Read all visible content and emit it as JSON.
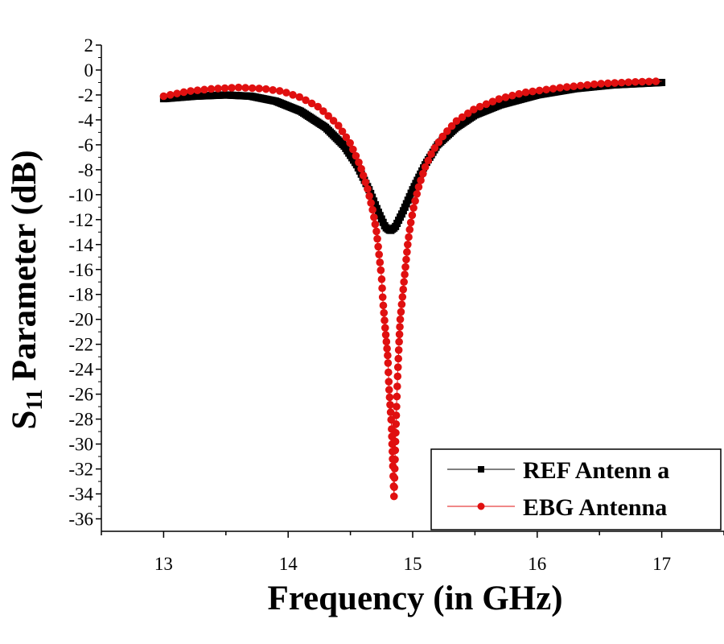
{
  "chart_data": {
    "type": "scatter",
    "title": "",
    "xlabel": "Frequency (in GHz)",
    "ylabel": {
      "base": "S",
      "subscript": "11",
      "rest": "Parameter (dB)"
    },
    "xlim": [
      12.5,
      17.5
    ],
    "ylim": [
      -37,
      2
    ],
    "x_ticks": [
      13,
      14,
      15,
      16,
      17
    ],
    "y_ticks": [
      2,
      0,
      -2,
      -4,
      -6,
      -8,
      -10,
      -12,
      -14,
      -16,
      -18,
      -20,
      -22,
      -24,
      -26,
      -28,
      -30,
      -32,
      -34,
      -36
    ],
    "x_range": [
      13,
      17
    ],
    "legend_position": "bottom-right",
    "colors": {
      "ref": "#000000",
      "ebg": "#e01010"
    },
    "series": [
      {
        "name": "REF Antenn a",
        "marker": "square",
        "points": [
          [
            13.0,
            -2.3
          ],
          [
            13.25,
            -2.1
          ],
          [
            13.5,
            -2.0
          ],
          [
            13.7,
            -2.1
          ],
          [
            13.9,
            -2.5
          ],
          [
            14.1,
            -3.3
          ],
          [
            14.3,
            -4.6
          ],
          [
            14.45,
            -6.1
          ],
          [
            14.55,
            -7.6
          ],
          [
            14.65,
            -9.6
          ],
          [
            14.72,
            -11.3
          ],
          [
            14.78,
            -12.6
          ],
          [
            14.82,
            -12.9
          ],
          [
            14.86,
            -12.6
          ],
          [
            14.92,
            -11.4
          ],
          [
            15.0,
            -9.6
          ],
          [
            15.1,
            -7.6
          ],
          [
            15.2,
            -6.0
          ],
          [
            15.35,
            -4.6
          ],
          [
            15.5,
            -3.6
          ],
          [
            15.7,
            -2.8
          ],
          [
            16.0,
            -2.0
          ],
          [
            16.3,
            -1.5
          ],
          [
            16.6,
            -1.2
          ],
          [
            17.0,
            -1.0
          ]
        ]
      },
      {
        "name": "EBG Antenna",
        "marker": "circle",
        "points": [
          [
            13.0,
            -2.1
          ],
          [
            13.2,
            -1.7
          ],
          [
            13.4,
            -1.5
          ],
          [
            13.6,
            -1.4
          ],
          [
            13.8,
            -1.5
          ],
          [
            13.95,
            -1.7
          ],
          [
            14.1,
            -2.2
          ],
          [
            14.25,
            -3.0
          ],
          [
            14.4,
            -4.4
          ],
          [
            14.5,
            -5.9
          ],
          [
            14.58,
            -7.7
          ],
          [
            14.64,
            -9.6
          ],
          [
            14.68,
            -11.3
          ],
          [
            14.71,
            -13.0
          ],
          [
            14.73,
            -14.8
          ],
          [
            14.75,
            -16.6
          ],
          [
            14.76,
            -18.4
          ],
          [
            14.78,
            -20.8
          ],
          [
            14.8,
            -23.0
          ],
          [
            14.81,
            -25.5
          ],
          [
            14.83,
            -28.5
          ],
          [
            14.84,
            -31.5
          ],
          [
            14.85,
            -34.2
          ],
          [
            14.86,
            -30.5
          ],
          [
            14.87,
            -27.0
          ],
          [
            14.88,
            -24.3
          ],
          [
            14.89,
            -22.0
          ],
          [
            14.9,
            -20.0
          ],
          [
            14.92,
            -18.0
          ],
          [
            14.94,
            -16.0
          ],
          [
            14.96,
            -14.0
          ],
          [
            14.98,
            -12.5
          ],
          [
            15.01,
            -10.9
          ],
          [
            15.05,
            -9.3
          ],
          [
            15.1,
            -7.8
          ],
          [
            15.16,
            -6.5
          ],
          [
            15.25,
            -5.2
          ],
          [
            15.35,
            -4.1
          ],
          [
            15.5,
            -3.1
          ],
          [
            15.7,
            -2.3
          ],
          [
            15.9,
            -1.8
          ],
          [
            16.2,
            -1.4
          ],
          [
            16.5,
            -1.1
          ],
          [
            16.8,
            -0.95
          ],
          [
            17.0,
            -0.9
          ]
        ]
      }
    ]
  }
}
